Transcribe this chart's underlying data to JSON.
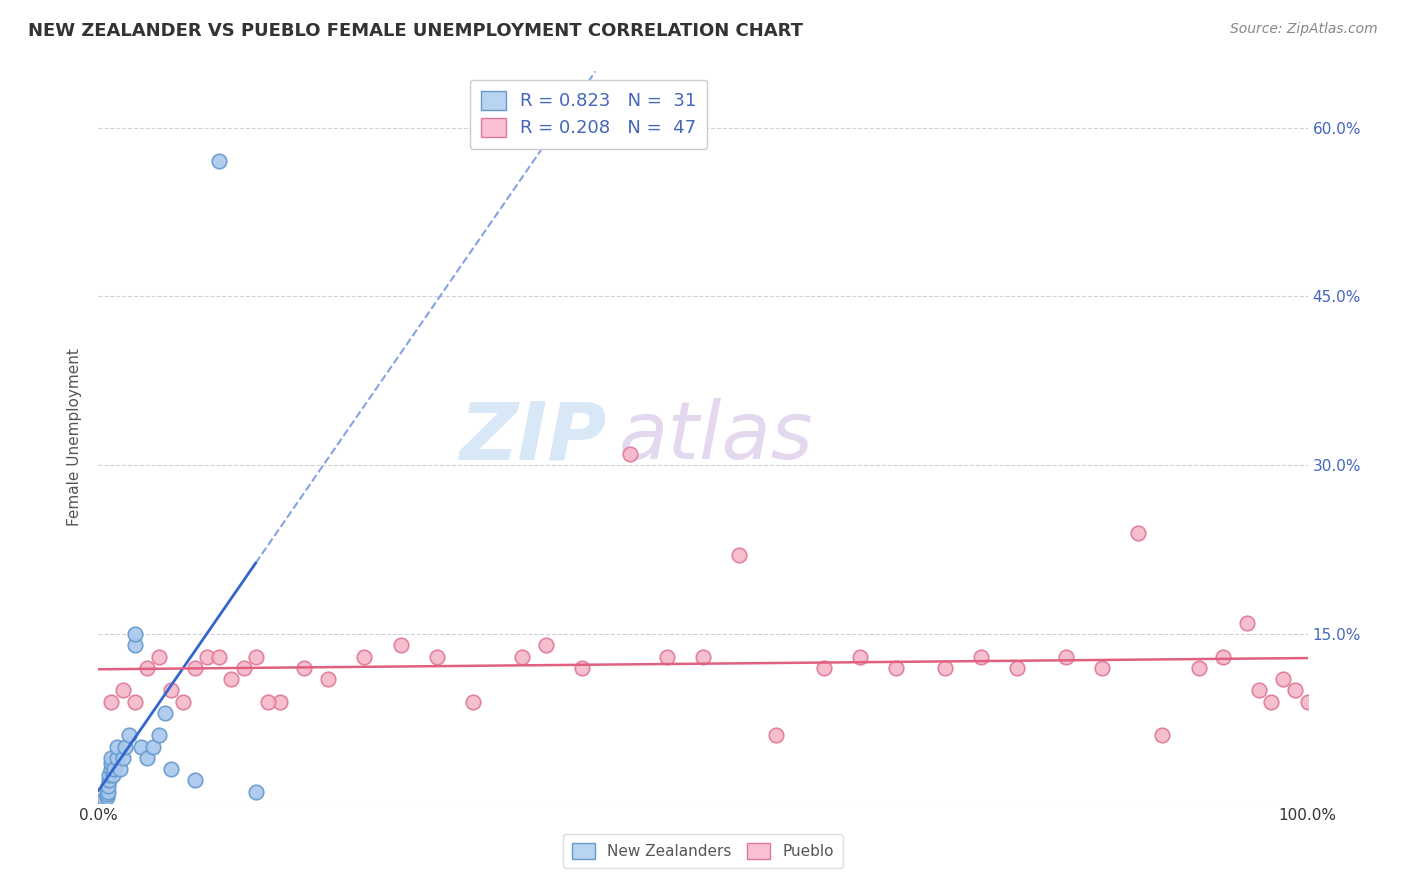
{
  "title": "NEW ZEALANDER VS PUEBLO FEMALE UNEMPLOYMENT CORRELATION CHART",
  "source_text": "Source: ZipAtlas.com",
  "ylabel": "Female Unemployment",
  "xlim": [
    0.0,
    1.0
  ],
  "ylim": [
    0.0,
    0.65
  ],
  "x_ticks": [
    0.0,
    0.2,
    0.4,
    0.6,
    0.8,
    1.0
  ],
  "x_tick_labels": [
    "0.0%",
    "",
    "",
    "",
    "",
    "100.0%"
  ],
  "y_ticks": [
    0.0,
    0.15,
    0.3,
    0.45,
    0.6
  ],
  "y_tick_labels_right": [
    "",
    "15.0%",
    "30.0%",
    "45.0%",
    "60.0%"
  ],
  "legend1_label": "R = 0.823   N =  31",
  "legend2_label": "R = 0.208   N =  47",
  "legend1_facecolor": "#b8d4f0",
  "legend2_facecolor": "#f8c0d0",
  "line1_color": "#3366cc",
  "line2_color": "#e06080",
  "scatter1_facecolor": "#a8c8ee",
  "scatter1_edgecolor": "#6699cc",
  "scatter2_facecolor": "#f5b8c8",
  "scatter2_edgecolor": "#e07898",
  "background_color": "#ffffff",
  "grid_color": "#d0d0d8",
  "watermark_zip_color": "#c8dff5",
  "watermark_atlas_color": "#d8c8e8",
  "title_color": "#333333",
  "source_color": "#888888",
  "ylabel_color": "#555555",
  "tick_label_color": "#333333",
  "right_tick_color": "#4466bb",
  "bottom_legend_color": "#555555",
  "nz_x": [
    0.005,
    0.005,
    0.005,
    0.007,
    0.007,
    0.008,
    0.008,
    0.009,
    0.009,
    0.01,
    0.01,
    0.01,
    0.012,
    0.013,
    0.015,
    0.015,
    0.018,
    0.02,
    0.022,
    0.025,
    0.03,
    0.03,
    0.035,
    0.04,
    0.045,
    0.05,
    0.055,
    0.06,
    0.08,
    0.1,
    0.13
  ],
  "nz_y": [
    0.0,
    0.0,
    0.003,
    0.005,
    0.008,
    0.01,
    0.015,
    0.02,
    0.025,
    0.03,
    0.035,
    0.04,
    0.025,
    0.03,
    0.04,
    0.05,
    0.03,
    0.04,
    0.05,
    0.06,
    0.14,
    0.15,
    0.05,
    0.04,
    0.05,
    0.06,
    0.08,
    0.03,
    0.02,
    0.57,
    0.01
  ],
  "pueblo_x": [
    0.01,
    0.02,
    0.03,
    0.04,
    0.05,
    0.06,
    0.07,
    0.08,
    0.09,
    0.1,
    0.11,
    0.12,
    0.13,
    0.15,
    0.17,
    0.19,
    0.22,
    0.25,
    0.28,
    0.31,
    0.35,
    0.37,
    0.4,
    0.44,
    0.47,
    0.5,
    0.53,
    0.56,
    0.6,
    0.63,
    0.66,
    0.7,
    0.73,
    0.76,
    0.8,
    0.83,
    0.86,
    0.88,
    0.91,
    0.93,
    0.95,
    0.96,
    0.97,
    0.98,
    0.99,
    1.0,
    0.14
  ],
  "pueblo_y": [
    0.09,
    0.1,
    0.09,
    0.12,
    0.13,
    0.1,
    0.09,
    0.12,
    0.13,
    0.13,
    0.11,
    0.12,
    0.13,
    0.09,
    0.12,
    0.11,
    0.13,
    0.14,
    0.13,
    0.09,
    0.13,
    0.14,
    0.12,
    0.31,
    0.13,
    0.13,
    0.22,
    0.06,
    0.12,
    0.13,
    0.12,
    0.12,
    0.13,
    0.12,
    0.13,
    0.12,
    0.24,
    0.06,
    0.12,
    0.13,
    0.16,
    0.1,
    0.09,
    0.11,
    0.1,
    0.09,
    0.09
  ]
}
